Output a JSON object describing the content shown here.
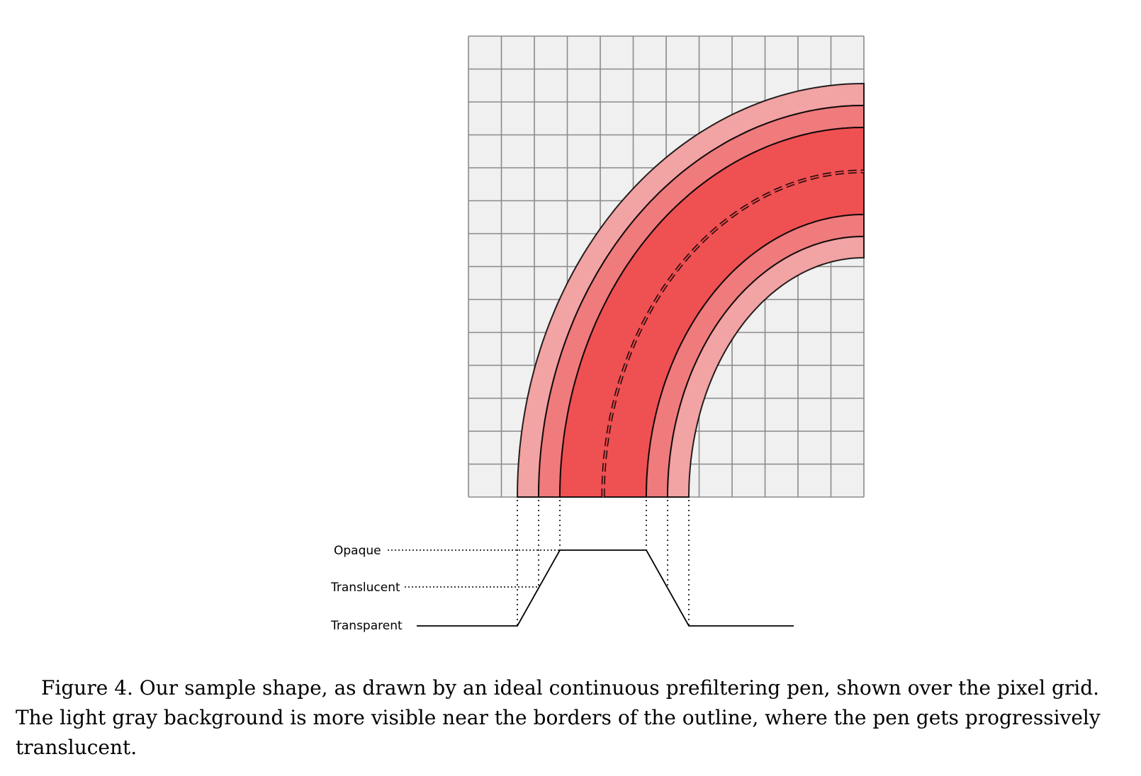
{
  "figure": {
    "grid": {
      "columns": 12,
      "rows": 14
    },
    "colors": {
      "grid_fill": "#f0f0f0",
      "grid_line": "#8a8a8a",
      "stroke_opaque": "#ef5052",
      "stroke_translucent": "#ef7b7d",
      "stroke_edge": "#f2a3a4",
      "outline": "#000000"
    },
    "levels": {
      "opaque": "Opaque",
      "translucent": "Translucent",
      "transparent": "Transparent"
    }
  },
  "caption": "Figure 4. Our sample shape, as drawn by an ideal continuous prefiltering pen, shown over the pixel grid. The light gray background is more visible near the borders of the outline, where the pen gets progressively translucent."
}
